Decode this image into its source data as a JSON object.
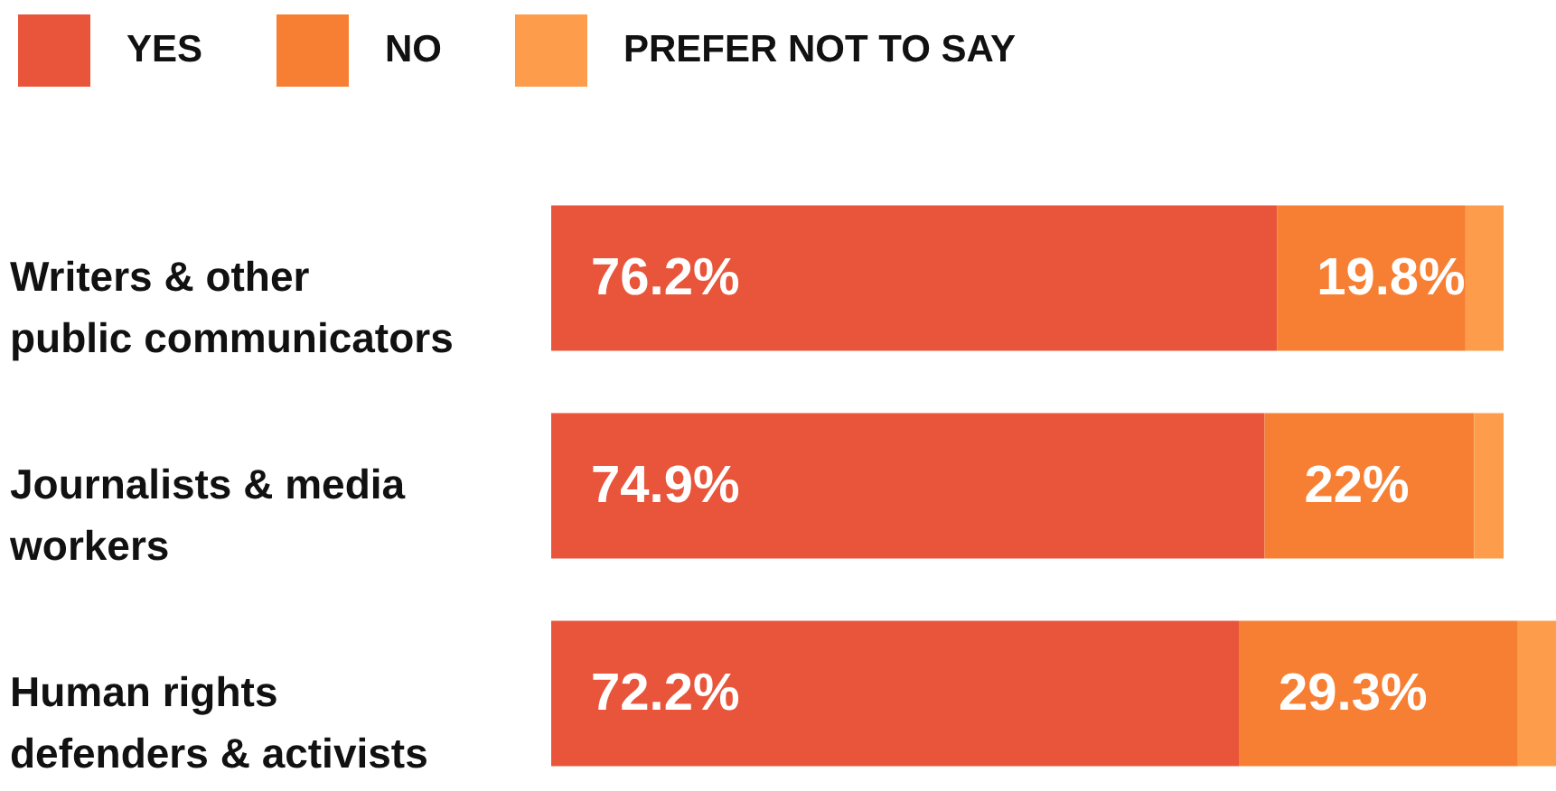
{
  "chart_data": {
    "type": "bar",
    "orientation": "horizontal",
    "stacked": true,
    "categories": [
      "Writers & other public communicators",
      "Journalists & media workers",
      "Human rights defenders & activists"
    ],
    "series": [
      {
        "name": "YES",
        "color": "#e8553a",
        "values": [
          76.2,
          74.9,
          72.2
        ],
        "value_labels": [
          "76.2%",
          "74.9%",
          "72.2%"
        ]
      },
      {
        "name": "NO",
        "color": "#f77f33",
        "values": [
          19.8,
          22,
          29.3
        ],
        "value_labels": [
          "19.8%",
          "22%",
          "29.3%"
        ]
      },
      {
        "name": "PREFER NOT TO SAY",
        "color": "#fd9d4b",
        "values": [
          4,
          3.1,
          4
        ],
        "value_labels": [
          null,
          null,
          null
        ]
      }
    ],
    "xlim": [
      0,
      105.5
    ],
    "tick_labels": "y",
    "grid": false,
    "legend": "top left"
  }
}
